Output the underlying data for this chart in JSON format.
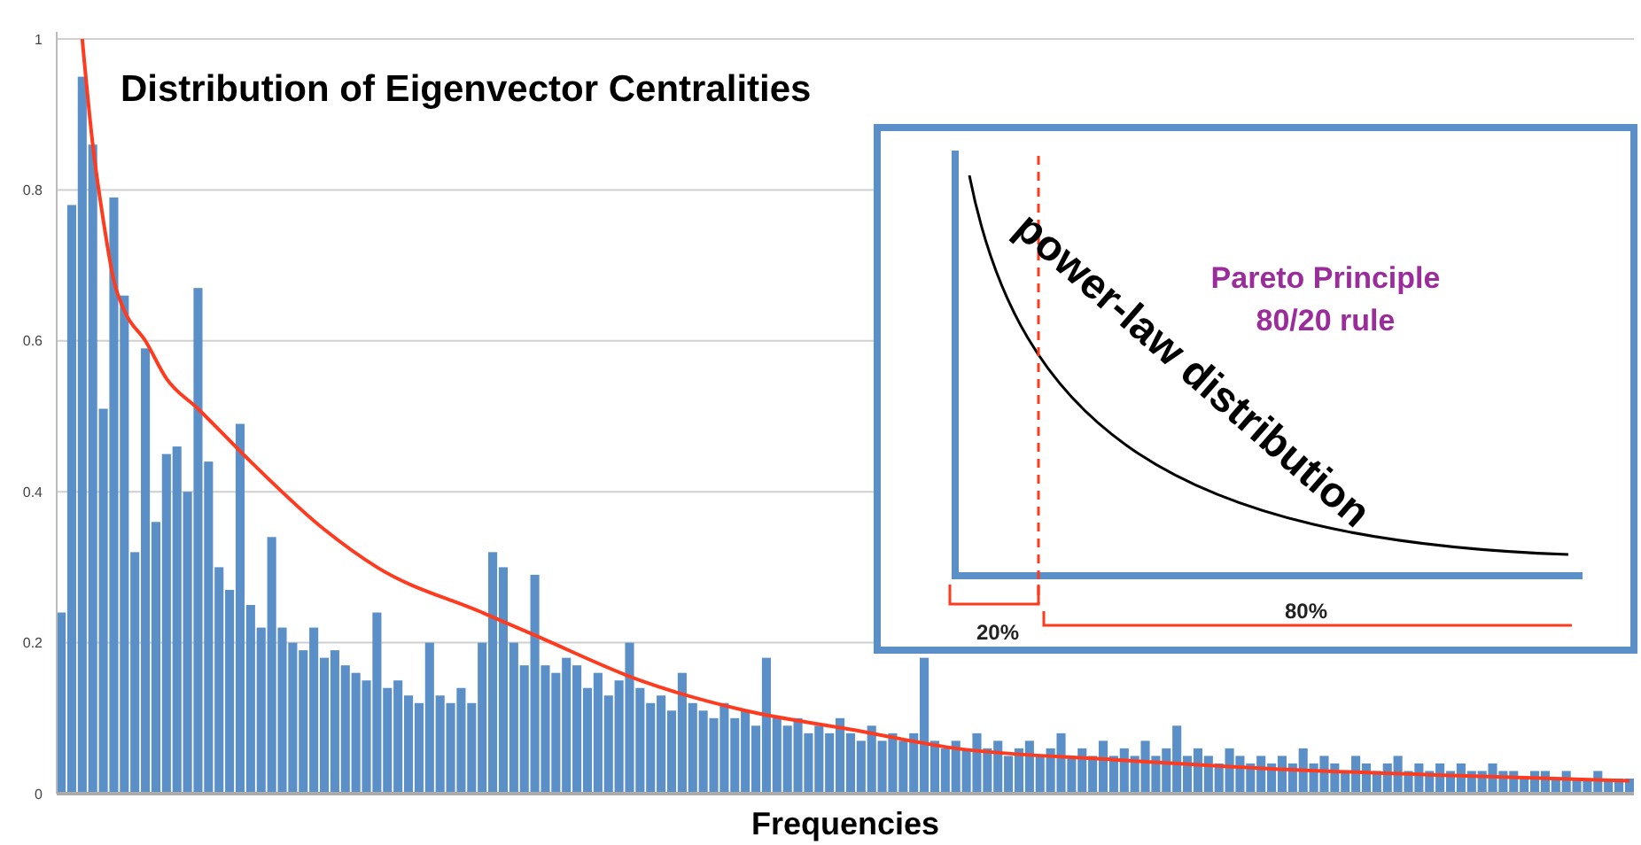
{
  "chart_data": {
    "type": "bar",
    "title": "Distribution of Eigenvector Centralities",
    "xlabel": "Frequencies",
    "categories": [
      null,
      null,
      null,
      null,
      null,
      null,
      null,
      null,
      null,
      null,
      null,
      null,
      null,
      null,
      null,
      null,
      null,
      null,
      null,
      null,
      null,
      null,
      null,
      null,
      null,
      null,
      null,
      null,
      null,
      null,
      null,
      null,
      null,
      null,
      null,
      null,
      null,
      null,
      null,
      null,
      null,
      null,
      null,
      null,
      null,
      null,
      null,
      null,
      null,
      null,
      null,
      null,
      null,
      null,
      null,
      null,
      null,
      null,
      null,
      null,
      null,
      null,
      null,
      null,
      null,
      null,
      null,
      null,
      null,
      null,
      null,
      null,
      null,
      null,
      null,
      null,
      null,
      null,
      null,
      null,
      null,
      null,
      null,
      null,
      null,
      null,
      null,
      null,
      null,
      null,
      null,
      null,
      null,
      null,
      null,
      null,
      null,
      null,
      null,
      null,
      null,
      null,
      null,
      null,
      null,
      null,
      null,
      null,
      null,
      null,
      null,
      null,
      null,
      null,
      null,
      null,
      null,
      null,
      null,
      null,
      null,
      null,
      null,
      null,
      null,
      null,
      null,
      null,
      null,
      null,
      null,
      null,
      null,
      null,
      null,
      null,
      null,
      null,
      null,
      null,
      null,
      null,
      null,
      null,
      null,
      null,
      null,
      null,
      null,
      null
    ],
    "series": [
      {
        "color": "#5b8fc7",
        "values": [
          0.24,
          0.78,
          0.95,
          0.86,
          0.51,
          0.79,
          0.66,
          0.32,
          0.59,
          0.36,
          0.45,
          0.46,
          0.4,
          0.67,
          0.44,
          0.3,
          0.27,
          0.49,
          0.25,
          0.22,
          0.34,
          0.22,
          0.2,
          0.19,
          0.22,
          0.18,
          0.19,
          0.17,
          0.16,
          0.15,
          0.24,
          0.14,
          0.15,
          0.13,
          0.12,
          0.2,
          0.13,
          0.12,
          0.14,
          0.12,
          0.2,
          0.32,
          0.3,
          0.2,
          0.17,
          0.29,
          0.17,
          0.16,
          0.18,
          0.17,
          0.14,
          0.16,
          0.13,
          0.15,
          0.2,
          0.14,
          0.12,
          0.13,
          0.11,
          0.16,
          0.12,
          0.11,
          0.1,
          0.12,
          0.1,
          0.11,
          0.09,
          0.18,
          0.1,
          0.09,
          0.1,
          0.08,
          0.09,
          0.08,
          0.1,
          0.08,
          0.07,
          0.09,
          0.07,
          0.08,
          0.07,
          0.08,
          0.18,
          0.07,
          0.06,
          0.07,
          0.06,
          0.08,
          0.06,
          0.07,
          0.05,
          0.06,
          0.07,
          0.05,
          0.06,
          0.08,
          0.05,
          0.06,
          0.05,
          0.07,
          0.05,
          0.06,
          0.05,
          0.07,
          0.05,
          0.06,
          0.09,
          0.05,
          0.06,
          0.05,
          0.04,
          0.06,
          0.05,
          0.04,
          0.05,
          0.04,
          0.05,
          0.04,
          0.06,
          0.04,
          0.05,
          0.04,
          0.03,
          0.05,
          0.04,
          0.03,
          0.04,
          0.05,
          0.03,
          0.04,
          0.03,
          0.04,
          0.03,
          0.04,
          0.03,
          0.03,
          0.04,
          0.03,
          0.03,
          0.02,
          0.03,
          0.03,
          0.02,
          0.03,
          0.02,
          0.02,
          0.03,
          0.02,
          0.02,
          0.02
        ]
      },
      {
        "type": "line",
        "color": "#ff3b1f",
        "values": [
          null,
          null,
          1.0,
          0.86,
          0.76,
          0.68,
          0.64,
          null,
          0.6,
          null,
          0.55,
          null,
          null,
          0.51,
          null,
          null,
          null,
          null,
          0.44,
          null,
          null,
          null,
          null,
          null,
          null,
          0.35,
          null,
          null,
          null,
          null,
          0.3,
          null,
          null,
          null,
          null,
          null,
          null,
          null,
          null,
          null,
          0.24,
          null,
          null,
          null,
          null,
          0.21,
          null,
          null,
          null,
          null,
          null,
          null,
          null,
          null,
          null,
          0.15,
          null,
          null,
          null,
          null,
          null,
          null,
          null,
          null,
          null,
          0.11,
          null,
          null,
          null,
          null,
          null,
          null,
          null,
          null,
          null,
          0.085,
          null,
          null,
          null,
          null,
          null,
          null,
          null,
          null,
          null,
          0.06,
          null,
          null,
          null,
          null,
          null,
          null,
          null,
          null,
          null,
          null,
          null,
          null,
          null,
          null,
          0.045,
          null,
          null,
          null,
          null,
          null,
          null,
          null,
          null,
          null,
          null,
          null,
          null,
          null,
          null,
          0.033,
          null,
          null,
          null,
          null,
          null,
          null,
          null,
          null,
          null,
          null,
          null,
          null,
          null,
          null,
          0.025,
          null,
          null,
          null,
          null,
          null,
          null,
          null,
          null,
          null,
          null,
          null,
          null,
          null,
          null,
          null,
          null,
          null,
          null,
          0.017
        ]
      }
    ],
    "ylim": [
      0,
      1
    ],
    "yticks": [
      0,
      0.2,
      0.4,
      0.6,
      0.8,
      1
    ],
    "grid": "y",
    "tick_labels": "y",
    "annotations": [
      "power-law distribution",
      "Pareto Principle",
      "80/20 rule",
      "20%",
      "80%"
    ]
  }
}
